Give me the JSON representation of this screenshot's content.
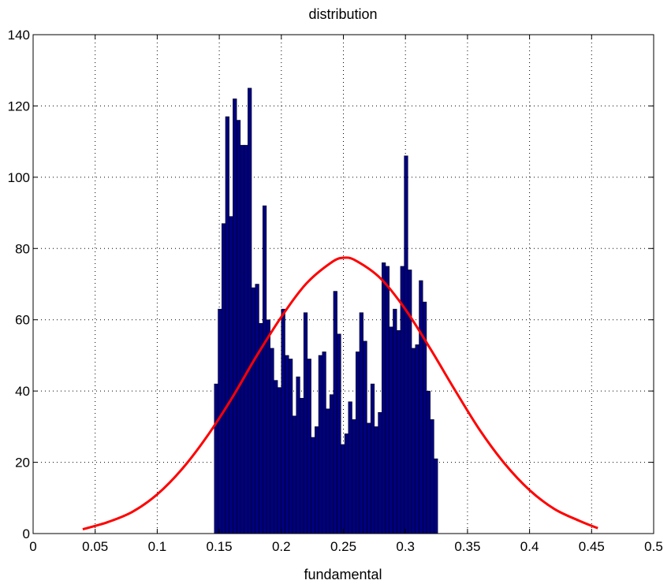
{
  "chart_data": {
    "type": "bar",
    "title": "distribution",
    "xlabel": "fundamental",
    "ylabel": "",
    "xlim": [
      0,
      0.5
    ],
    "ylim": [
      0,
      140
    ],
    "grid": true,
    "x_ticks": [
      "0",
      "0.05",
      "0.1",
      "0.15",
      "0.2",
      "0.25",
      "0.3",
      "0.35",
      "0.4",
      "0.45",
      "0.5"
    ],
    "y_ticks": [
      "0",
      "20",
      "40",
      "60",
      "80",
      "100",
      "120",
      "140"
    ],
    "bin_start": 0.146,
    "bin_width": 0.003,
    "values": [
      42,
      63,
      87,
      117,
      89,
      122,
      116,
      109,
      109,
      125,
      69,
      70,
      59,
      92,
      60,
      52,
      43,
      41,
      63,
      50,
      49,
      33,
      44,
      38,
      62,
      49,
      27,
      30,
      50,
      51,
      35,
      39,
      68,
      56,
      25,
      28,
      37,
      32,
      51,
      62,
      54,
      31,
      42,
      30,
      34,
      76,
      75,
      58,
      63,
      57,
      75,
      106,
      74,
      52,
      53,
      71,
      65,
      40,
      32,
      21
    ],
    "bar_color": "#00007f",
    "curve": {
      "type": "line",
      "color": "#ff0000",
      "x": [
        0.04,
        0.06,
        0.08,
        0.1,
        0.12,
        0.14,
        0.16,
        0.18,
        0.2,
        0.22,
        0.24,
        0.25,
        0.26,
        0.28,
        0.3,
        0.32,
        0.34,
        0.36,
        0.38,
        0.4,
        0.42,
        0.44,
        0.455
      ],
      "y": [
        1.2,
        3.2,
        6.1,
        11.0,
        18.1,
        27.2,
        37.9,
        49.8,
        60.8,
        70.1,
        76.0,
        77.4,
        76.6,
        71.6,
        62.9,
        51.9,
        40.2,
        29.0,
        19.6,
        12.2,
        6.9,
        3.6,
        1.5
      ]
    }
  }
}
